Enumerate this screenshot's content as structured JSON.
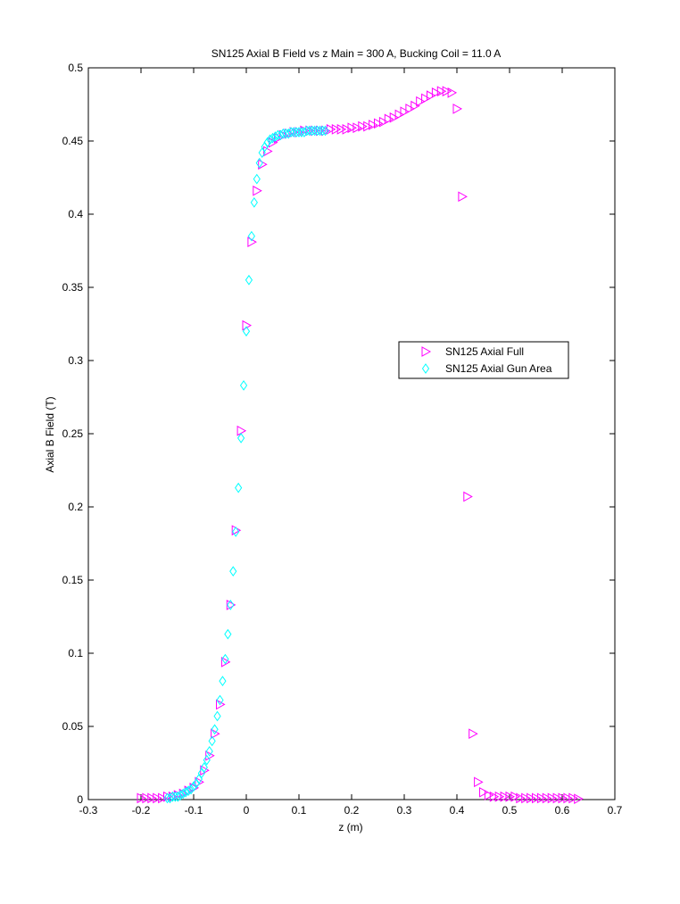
{
  "chart_data": {
    "type": "scatter",
    "title": "SN125 Axial B Field vs z Main = 300 A, Bucking Coil = 11.0 A",
    "xlabel": "z (m)",
    "ylabel": "Axial B Field (T)",
    "xlim": [
      -0.3,
      0.7
    ],
    "ylim": [
      0,
      0.5
    ],
    "xticks": [
      "-0.3",
      "-0.2",
      "-0.1",
      "0",
      "0.1",
      "0.2",
      "0.3",
      "0.4",
      "0.5",
      "0.6",
      "0.7"
    ],
    "yticks": [
      "0",
      "0.05",
      "0.1",
      "0.15",
      "0.2",
      "0.25",
      "0.3",
      "0.35",
      "0.4",
      "0.45",
      "0.5"
    ],
    "grid": false,
    "box": true,
    "legend_position": "right",
    "series": [
      {
        "name": "SN125 Axial Full",
        "marker": "triangle-right",
        "color": "#ff00ff",
        "x": [
          -0.2,
          -0.19,
          -0.18,
          -0.17,
          -0.16,
          -0.15,
          -0.14,
          -0.13,
          -0.12,
          -0.11,
          -0.1,
          -0.09,
          -0.08,
          -0.07,
          -0.06,
          -0.05,
          -0.04,
          -0.03,
          -0.02,
          -0.01,
          0,
          0.01,
          0.02,
          0.03,
          0.04,
          0.05,
          0.06,
          0.07,
          0.08,
          0.09,
          0.1,
          0.11,
          0.12,
          0.13,
          0.14,
          0.15,
          0.16,
          0.17,
          0.18,
          0.19,
          0.2,
          0.21,
          0.22,
          0.23,
          0.24,
          0.25,
          0.26,
          0.27,
          0.28,
          0.29,
          0.3,
          0.31,
          0.32,
          0.33,
          0.34,
          0.35,
          0.36,
          0.37,
          0.38,
          0.39,
          0.4,
          0.41,
          0.42,
          0.43,
          0.44,
          0.45,
          0.46,
          0.47,
          0.48,
          0.49,
          0.5,
          0.51,
          0.52,
          0.53,
          0.54,
          0.55,
          0.56,
          0.57,
          0.58,
          0.59,
          0.6,
          0.61,
          0.62,
          0.63
        ],
        "y": [
          0.001,
          0.001,
          0.001,
          0.001,
          0.001,
          0.002,
          0.002,
          0.003,
          0.004,
          0.006,
          0.008,
          0.012,
          0.02,
          0.03,
          0.045,
          0.065,
          0.094,
          0.133,
          0.184,
          0.252,
          0.324,
          0.381,
          0.416,
          0.434,
          0.443,
          0.449,
          0.452,
          0.454,
          0.455,
          0.456,
          0.456,
          0.457,
          0.457,
          0.457,
          0.457,
          0.457,
          0.458,
          0.458,
          0.458,
          0.458,
          0.459,
          0.459,
          0.46,
          0.46,
          0.461,
          0.462,
          0.463,
          0.465,
          0.466,
          0.468,
          0.47,
          0.472,
          0.474,
          0.477,
          0.479,
          0.481,
          0.483,
          0.484,
          0.484,
          0.483,
          0.472,
          0.412,
          0.207,
          0.045,
          0.012,
          0.005,
          0.003,
          0.002,
          0.002,
          0.002,
          0.002,
          0.002,
          0.001,
          0.001,
          0.001,
          0.001,
          0.001,
          0.001,
          0.001,
          0.001,
          0.001,
          0.001,
          0.001,
          0.0005
        ]
      },
      {
        "name": "SN125 Axial Gun Area",
        "marker": "diamond",
        "color": "#00ffff",
        "x": [
          -0.15,
          -0.145,
          -0.14,
          -0.135,
          -0.13,
          -0.125,
          -0.12,
          -0.115,
          -0.11,
          -0.105,
          -0.1,
          -0.095,
          -0.09,
          -0.085,
          -0.08,
          -0.075,
          -0.07,
          -0.065,
          -0.06,
          -0.055,
          -0.05,
          -0.045,
          -0.04,
          -0.035,
          -0.03,
          -0.025,
          -0.02,
          -0.015,
          -0.01,
          -0.005,
          0,
          0.005,
          0.01,
          0.015,
          0.02,
          0.025,
          0.03,
          0.035,
          0.04,
          0.045,
          0.05,
          0.055,
          0.06,
          0.065,
          0.07,
          0.075,
          0.08,
          0.085,
          0.09,
          0.095,
          0.1,
          0.105,
          0.11,
          0.115,
          0.12,
          0.125,
          0.13,
          0.135,
          0.14,
          0.145,
          0.15
        ],
        "y": [
          0.001,
          0.001,
          0.002,
          0.002,
          0.002,
          0.003,
          0.004,
          0.005,
          0.006,
          0.007,
          0.009,
          0.011,
          0.014,
          0.018,
          0.022,
          0.027,
          0.033,
          0.04,
          0.048,
          0.057,
          0.068,
          0.081,
          0.096,
          0.113,
          0.133,
          0.156,
          0.183,
          0.213,
          0.247,
          0.283,
          0.32,
          0.355,
          0.385,
          0.408,
          0.424,
          0.435,
          0.442,
          0.446,
          0.449,
          0.451,
          0.452,
          0.453,
          0.454,
          0.454,
          0.455,
          0.455,
          0.455,
          0.456,
          0.456,
          0.456,
          0.456,
          0.456,
          0.456,
          0.457,
          0.457,
          0.457,
          0.457,
          0.457,
          0.457,
          0.457,
          0.457
        ]
      }
    ]
  }
}
